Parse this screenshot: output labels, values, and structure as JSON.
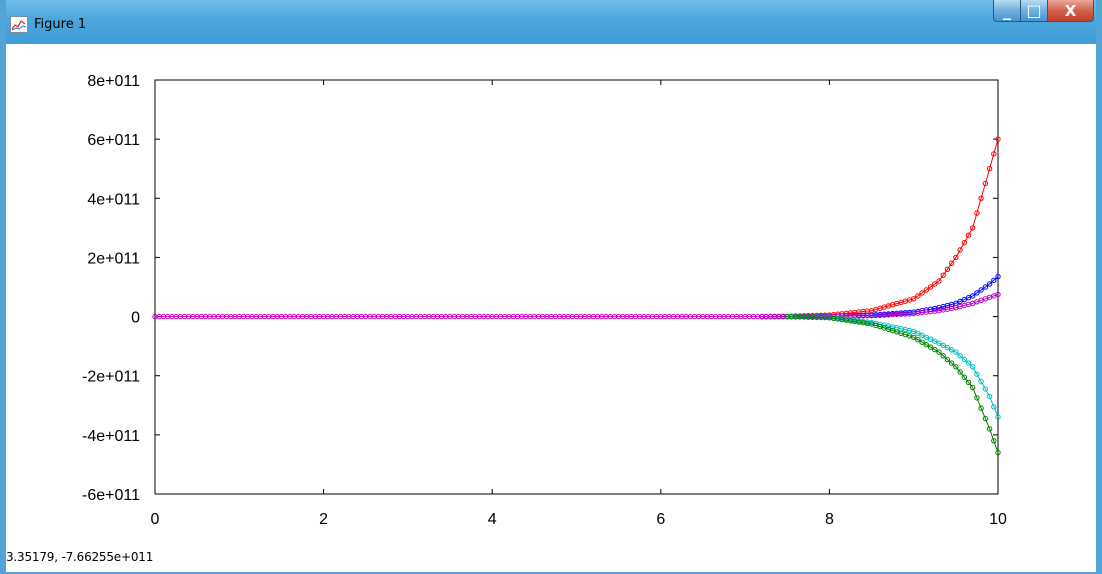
{
  "window": {
    "title": "Figure 1",
    "icon": "figure-app-icon",
    "controls": {
      "minimize": "_",
      "maximize": "□",
      "close": "X"
    }
  },
  "statusbar": {
    "coordinates": "3.35179, -7.66255e+011"
  },
  "chart_data": {
    "type": "line",
    "title": "",
    "xlabel": "",
    "ylabel": "",
    "xlim": [
      0,
      10
    ],
    "ylim": [
      -600000000000.0,
      800000000000.0
    ],
    "xticks": [
      0,
      2,
      4,
      6,
      8,
      10
    ],
    "xtick_labels": [
      "0",
      "2",
      "4",
      "6",
      "8",
      "10"
    ],
    "yticks": [
      -600000000000.0,
      -400000000000.0,
      -200000000000.0,
      0,
      200000000000.0,
      400000000000.0,
      600000000000.0,
      800000000000.0
    ],
    "ytick_labels": [
      "-6e+011",
      "-4e+011",
      "-2e+011",
      "0",
      "2e+011",
      "4e+011",
      "6e+011",
      "8e+011"
    ],
    "grid": false,
    "legend": "none",
    "markers": "circle",
    "series": [
      {
        "color": "#ff0000",
        "x": [
          7.2,
          7.5,
          8.0,
          8.5,
          9.0,
          9.3,
          9.5,
          9.7,
          9.9,
          10.0
        ],
        "y": [
          0,
          1000000000.0,
          5000000000.0,
          20000000000.0,
          60000000000.0,
          120000000000.0,
          200000000000.0,
          300000000000.0,
          500000000000.0,
          600000000000.0
        ]
      },
      {
        "color": "#0000ff",
        "x": [
          7.2,
          7.5,
          8.0,
          8.5,
          9.0,
          9.3,
          9.5,
          9.7,
          9.9,
          10.0
        ],
        "y": [
          0,
          0,
          1000000000.0,
          5000000000.0,
          15000000000.0,
          30000000000.0,
          45000000000.0,
          70000000000.0,
          110000000000.0,
          135000000000.0
        ]
      },
      {
        "color": "#bf00bf",
        "x": [
          0,
          7.5,
          8.0,
          8.5,
          9.0,
          9.3,
          9.5,
          9.7,
          9.9,
          10.0
        ],
        "y": [
          0,
          0,
          1000000000.0,
          3000000000.0,
          10000000000.0,
          20000000000.0,
          30000000000.0,
          45000000000.0,
          65000000000.0,
          75000000000.0
        ]
      },
      {
        "color": "#00bfbf",
        "x": [
          7.5,
          8.0,
          8.5,
          9.0,
          9.3,
          9.5,
          9.7,
          9.9,
          10.0
        ],
        "y": [
          0,
          -2000000000.0,
          -20000000000.0,
          -50000000000.0,
          -90000000000.0,
          -120000000000.0,
          -170000000000.0,
          -270000000000.0,
          -340000000000.0
        ]
      },
      {
        "color": "#008000",
        "x": [
          7.5,
          8.0,
          8.5,
          9.0,
          9.3,
          9.5,
          9.7,
          9.9,
          10.0
        ],
        "y": [
          0,
          -4000000000.0,
          -25000000000.0,
          -70000000000.0,
          -120000000000.0,
          -170000000000.0,
          -240000000000.0,
          -380000000000.0,
          -460000000000.0
        ]
      }
    ]
  }
}
